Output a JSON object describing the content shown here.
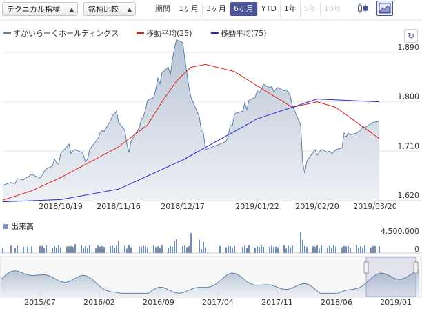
{
  "toolbar": {
    "indicator_select": "テクニカル指標",
    "compare_select": "銘柄比較",
    "period_label": "期間",
    "ranges": [
      "1ヶ月",
      "3ヶ月",
      "6ヶ月",
      "YTD",
      "1年",
      "5年",
      "10年"
    ],
    "active_range": "6ヶ月",
    "disabled_ranges": [
      "5年",
      "10年"
    ],
    "chart_types": [
      {
        "name": "candlestick-icon",
        "active": false
      },
      {
        "name": "area-chart-icon",
        "active": true
      }
    ],
    "refresh_icon": "refresh-icon"
  },
  "legend": {
    "items": [
      {
        "label": "すかいらーくホールディングス",
        "color": "#5b7fa8"
      },
      {
        "label": "移動平均(25)",
        "color": "#e02020"
      },
      {
        "label": "移動平均(75)",
        "color": "#2b2bcc"
      }
    ]
  },
  "colors": {
    "price_line": "#5b7fa8",
    "price_fill": "#d0d7e2",
    "ma25": "#e02020",
    "ma75": "#2b2bcc",
    "volume": "#7590b8",
    "accent": "#4a5599"
  },
  "volume": {
    "label": "出来高",
    "ticks": [
      "4,500,000",
      "0"
    ]
  },
  "navigator": {
    "labels": [
      "2015/07",
      "2016/02",
      "2016/09",
      "2017/04",
      "2017/11",
      "2018/06",
      "2019/01"
    ]
  },
  "chart_data": {
    "type": "area",
    "y_ticks": [
      1620,
      1710,
      1800,
      1890
    ],
    "ylim": [
      1620,
      1920
    ],
    "x_tick_labels": [
      "2018/10/19",
      "2018/11/16",
      "2018/12/17",
      "2019/01/22",
      "2019/02/20",
      "2019/03/20"
    ],
    "grid": true,
    "legend_position": "top-left",
    "x_range": [
      "2018/09/21",
      "2019/03/22"
    ],
    "series": [
      {
        "name": "すかいらーくホールディングス",
        "type": "area",
        "x": [
          "2018/09/21",
          "2018/09/25",
          "2018/09/27",
          "2018/09/28",
          "2018/10/01",
          "2018/10/03",
          "2018/10/05",
          "2018/10/09",
          "2018/10/10",
          "2018/10/11",
          "2018/10/12",
          "2018/10/15",
          "2018/10/16",
          "2018/10/17",
          "2018/10/18",
          "2018/10/19",
          "2018/10/22",
          "2018/10/23",
          "2018/10/24",
          "2018/10/25",
          "2018/10/26",
          "2018/10/29",
          "2018/10/30",
          "2018/10/31",
          "2018/11/01",
          "2018/11/02",
          "2018/11/05",
          "2018/11/06",
          "2018/11/07",
          "2018/11/08",
          "2018/11/09",
          "2018/11/12",
          "2018/11/13",
          "2018/11/14",
          "2018/11/15",
          "2018/11/16",
          "2018/11/19",
          "2018/11/20",
          "2018/11/21",
          "2018/11/22",
          "2018/11/26",
          "2018/11/27",
          "2018/11/28",
          "2018/11/29",
          "2018/11/30",
          "2018/12/03",
          "2018/12/04",
          "2018/12/05",
          "2018/12/06",
          "2018/12/07",
          "2018/12/10",
          "2018/12/11",
          "2018/12/12",
          "2018/12/13",
          "2018/12/14",
          "2018/12/17",
          "2018/12/18",
          "2018/12/19",
          "2018/12/20",
          "2018/12/21",
          "2018/12/25",
          "2018/12/26",
          "2018/12/27",
          "2018/12/28",
          "2019/01/04",
          "2019/01/07",
          "2019/01/08",
          "2019/01/09",
          "2019/01/10",
          "2019/01/11",
          "2019/01/15",
          "2019/01/16",
          "2019/01/17",
          "2019/01/18",
          "2019/01/21",
          "2019/01/22",
          "2019/01/23",
          "2019/01/24",
          "2019/01/25",
          "2019/01/28",
          "2019/01/29",
          "2019/01/30",
          "2019/01/31",
          "2019/02/01",
          "2019/02/04",
          "2019/02/05",
          "2019/02/06",
          "2019/02/07",
          "2019/02/08",
          "2019/02/12",
          "2019/02/13",
          "2019/02/14",
          "2019/02/15",
          "2019/02/18",
          "2019/02/19",
          "2019/02/20",
          "2019/02/21",
          "2019/02/22",
          "2019/02/25",
          "2019/02/26",
          "2019/02/27",
          "2019/02/28",
          "2019/03/01",
          "2019/03/04",
          "2019/03/05",
          "2019/03/06",
          "2019/03/07",
          "2019/03/08",
          "2019/03/11",
          "2019/03/12",
          "2019/03/13",
          "2019/03/14",
          "2019/03/15",
          "2019/03/18",
          "2019/03/19",
          "2019/03/20",
          "2019/03/22"
        ],
        "y": [
          1648,
          1653,
          1651,
          1660,
          1658,
          1663,
          1668,
          1661,
          1666,
          1673,
          1678,
          1683,
          1696,
          1689,
          1686,
          1706,
          1718,
          1723,
          1706,
          1711,
          1713,
          1708,
          1703,
          1691,
          1696,
          1713,
          1728,
          1733,
          1743,
          1748,
          1746,
          1765,
          1775,
          1778,
          1783,
          1763,
          1748,
          1723,
          1708,
          1728,
          1753,
          1768,
          1773,
          1786,
          1803,
          1808,
          1823,
          1843,
          1833,
          1853,
          1863,
          1848,
          1876,
          1898,
          1913,
          1908,
          1878,
          1853,
          1826,
          1808,
          1773,
          1748,
          1743,
          1713,
          1723,
          1728,
          1738,
          1758,
          1756,
          1778,
          1783,
          1798,
          1786,
          1803,
          1808,
          1820,
          1816,
          1823,
          1832,
          1826,
          1828,
          1818,
          1823,
          1826,
          1820,
          1822,
          1818,
          1810,
          1793,
          1758,
          1688,
          1670,
          1692,
          1708,
          1713,
          1703,
          1708,
          1713,
          1708,
          1710,
          1706,
          1708,
          1713,
          1716,
          1743,
          1736,
          1743,
          1740,
          1743,
          1746,
          1748,
          1756,
          1753,
          1760,
          1763,
          1763,
          1765
        ]
      },
      {
        "name": "移動平均(25)",
        "type": "line",
        "x": [
          "2018/09/21",
          "2018/10/05",
          "2018/10/19",
          "2018/11/02",
          "2018/11/16",
          "2018/11/30",
          "2018/12/07",
          "2018/12/14",
          "2018/12/21",
          "2018/12/28",
          "2019/01/11",
          "2019/01/25",
          "2019/02/08",
          "2019/02/20",
          "2019/03/01",
          "2019/03/15",
          "2019/03/22"
        ],
        "y": [
          1621,
          1638,
          1662,
          1690,
          1718,
          1758,
          1800,
          1838,
          1863,
          1868,
          1855,
          1822,
          1790,
          1800,
          1790,
          1752,
          1733
        ]
      },
      {
        "name": "移動平均(75)",
        "type": "line",
        "x": [
          "2018/09/21",
          "2018/10/19",
          "2018/11/16",
          "2018/12/17",
          "2019/01/22",
          "2019/02/20",
          "2019/03/22"
        ],
        "y": [
          1618,
          1622,
          1641,
          1694,
          1769,
          1805,
          1800
        ]
      }
    ],
    "volume_range": [
      0,
      4500000
    ]
  }
}
